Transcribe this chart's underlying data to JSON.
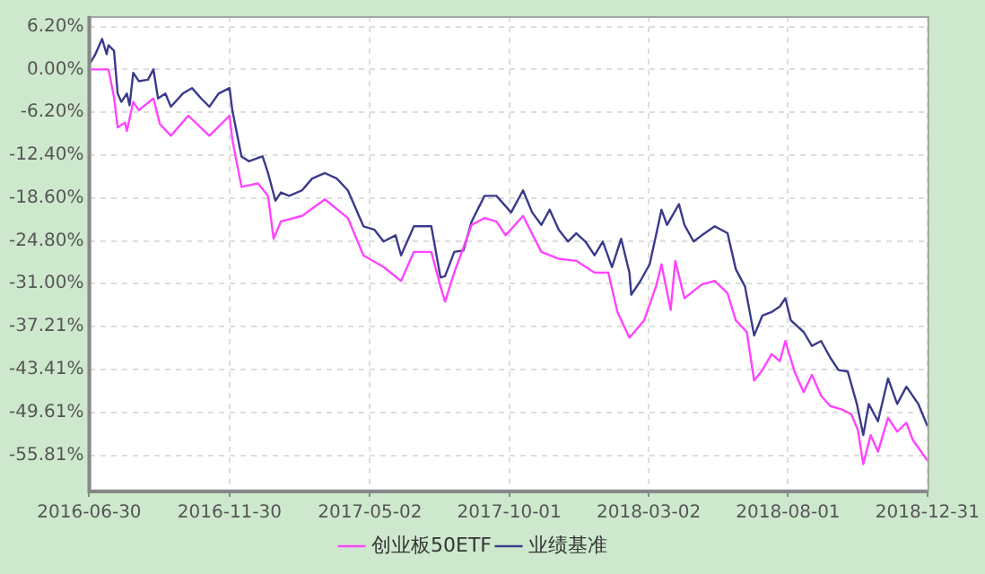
{
  "chart_data": {
    "type": "line",
    "xlim": [
      "2016-06-30",
      "2018-12-31"
    ],
    "xticks": [
      "2016-06-30",
      "2016-11-30",
      "2017-05-02",
      "2017-10-01",
      "2018-03-02",
      "2018-08-01",
      "2018-12-31"
    ],
    "ylim": [
      -60.8,
      7.7
    ],
    "yticks": [
      {
        "value": 6.2,
        "label": "6.20%"
      },
      {
        "value": 0,
        "label": "0.00%"
      },
      {
        "value": -6.2,
        "label": "-6.20%"
      },
      {
        "value": -12.4,
        "label": "-12.40%"
      },
      {
        "value": -18.6,
        "label": "-18.60%"
      },
      {
        "value": -24.8,
        "label": "-24.80%"
      },
      {
        "value": -31,
        "label": "-31.00%"
      },
      {
        "value": -37.21,
        "label": "-37.21%"
      },
      {
        "value": -43.41,
        "label": "-43.41%"
      },
      {
        "value": -49.61,
        "label": "-49.61%"
      },
      {
        "value": -55.81,
        "label": "-55.81%"
      }
    ],
    "grid": true,
    "legend": "bottom",
    "marker": "none",
    "line_style": "solid",
    "series": [
      {
        "name": "创业板50ETF",
        "color": "#ff44ff",
        "x": [
          "2016-06-30",
          "2016-07-21",
          "2016-07-27",
          "2016-07-31",
          "2016-08-08",
          "2016-08-10",
          "2016-08-17",
          "2016-08-23",
          "2016-09-08",
          "2016-09-15",
          "2016-09-27",
          "2016-10-16",
          "2016-11-08",
          "2016-11-30",
          "2016-12-03",
          "2016-12-13",
          "2016-12-31",
          "2017-01-11",
          "2017-01-17",
          "2017-01-25",
          "2017-02-17",
          "2017-03-14",
          "2017-04-08",
          "2017-04-25",
          "2017-05-17",
          "2017-06-05",
          "2017-06-19",
          "2017-07-08",
          "2017-07-18",
          "2017-07-23",
          "2017-08-02",
          "2017-08-21",
          "2017-09-04",
          "2017-09-17",
          "2017-09-27",
          "2017-10-16",
          "2017-11-05",
          "2017-11-24",
          "2017-12-13",
          "2018-01-02",
          "2018-01-17",
          "2018-01-27",
          "2018-02-09",
          "2018-02-25",
          "2018-03-10",
          "2018-03-16",
          "2018-03-26",
          "2018-03-31",
          "2018-04-10",
          "2018-04-29",
          "2018-05-13",
          "2018-05-27",
          "2018-06-05",
          "2018-06-17",
          "2018-06-25",
          "2018-07-04",
          "2018-07-14",
          "2018-07-23",
          "2018-07-29",
          "2018-08-08",
          "2018-08-18",
          "2018-08-27",
          "2018-09-06",
          "2018-09-16",
          "2018-09-29",
          "2018-10-09",
          "2018-10-16",
          "2018-10-22",
          "2018-10-30",
          "2018-11-07",
          "2018-11-18",
          "2018-11-28",
          "2018-12-08",
          "2018-12-15",
          "2018-12-31"
        ],
        "values": [
          0,
          0,
          -4,
          -8.4,
          -7.7,
          -8.9,
          -4.7,
          -5.9,
          -4.2,
          -7.9,
          -9.6,
          -6.7,
          -9.6,
          -6.7,
          -10.1,
          -17,
          -16.5,
          -18.3,
          -24.5,
          -22,
          -21.2,
          -18.8,
          -21.5,
          -26.9,
          -28.6,
          -30.6,
          -26.4,
          -26.4,
          -31.4,
          -33.6,
          -29.4,
          -22.5,
          -21.5,
          -22,
          -24,
          -21.2,
          -26.4,
          -27.4,
          -27.7,
          -29.4,
          -29.4,
          -35.1,
          -38.8,
          -36.3,
          -31.4,
          -28.2,
          -34.8,
          -27.7,
          -33.1,
          -31.1,
          -30.6,
          -32.4,
          -36.3,
          -38,
          -45,
          -43.5,
          -41.2,
          -42.2,
          -39.3,
          -43.7,
          -46.7,
          -44.2,
          -47.2,
          -48.7,
          -49.2,
          -49.9,
          -52.1,
          -57.1,
          -52.9,
          -55.3,
          -50.4,
          -52.4,
          -51.1,
          -53.6,
          -56.6
        ]
      },
      {
        "name": "业绩基准",
        "color": "#3a3a8c",
        "x": [
          "2016-06-30",
          "2016-07-06",
          "2016-07-14",
          "2016-07-19",
          "2016-07-21",
          "2016-07-27",
          "2016-07-31",
          "2016-08-04",
          "2016-08-10",
          "2016-08-13",
          "2016-08-17",
          "2016-08-23",
          "2016-09-02",
          "2016-09-08",
          "2016-09-13",
          "2016-09-21",
          "2016-09-27",
          "2016-10-10",
          "2016-10-20",
          "2016-10-30",
          "2016-11-08",
          "2016-11-18",
          "2016-11-30",
          "2016-12-03",
          "2016-12-13",
          "2016-12-21",
          "2016-12-31",
          "2017-01-05",
          "2017-01-11",
          "2017-01-19",
          "2017-01-25",
          "2017-02-03",
          "2017-02-17",
          "2017-02-28",
          "2017-03-14",
          "2017-03-27",
          "2017-04-08",
          "2017-04-25",
          "2017-05-07",
          "2017-05-17",
          "2017-05-30",
          "2017-06-05",
          "2017-06-19",
          "2017-07-08",
          "2017-07-18",
          "2017-07-23",
          "2017-08-02",
          "2017-08-12",
          "2017-08-21",
          "2017-09-04",
          "2017-09-17",
          "2017-10-03",
          "2017-10-16",
          "2017-10-26",
          "2017-11-05",
          "2017-11-14",
          "2017-11-24",
          "2017-12-04",
          "2017-12-13",
          "2017-12-23",
          "2018-01-02",
          "2018-01-11",
          "2018-01-21",
          "2018-01-31",
          "2018-02-09",
          "2018-02-11",
          "2018-02-21",
          "2018-03-03",
          "2018-03-10",
          "2018-03-16",
          "2018-03-22",
          "2018-04-04",
          "2018-04-10",
          "2018-04-20",
          "2018-04-29",
          "2018-05-13",
          "2018-05-27",
          "2018-06-05",
          "2018-06-15",
          "2018-06-25",
          "2018-07-04",
          "2018-07-14",
          "2018-07-23",
          "2018-07-29",
          "2018-08-04",
          "2018-08-18",
          "2018-08-27",
          "2018-09-06",
          "2018-09-16",
          "2018-09-25",
          "2018-10-05",
          "2018-10-15",
          "2018-10-22",
          "2018-10-28",
          "2018-11-07",
          "2018-11-18",
          "2018-11-28",
          "2018-12-08",
          "2018-12-21",
          "2018-12-31"
        ],
        "values": [
          0.7,
          2,
          4.4,
          2.2,
          3.5,
          2.7,
          -3.5,
          -4.7,
          -3.5,
          -5.2,
          -0.5,
          -1.7,
          -1.5,
          0,
          -4.2,
          -3.5,
          -5.4,
          -3.5,
          -2.7,
          -4.2,
          -5.4,
          -3.5,
          -2.7,
          -5.9,
          -12.6,
          -13.3,
          -12.8,
          -12.6,
          -15,
          -19,
          -17.8,
          -18.3,
          -17.5,
          -15.8,
          -15,
          -15.8,
          -17.5,
          -22.7,
          -23.2,
          -24.9,
          -24,
          -26.9,
          -22.7,
          -22.7,
          -30.1,
          -29.9,
          -26.4,
          -26.2,
          -22,
          -18.3,
          -18.3,
          -20.7,
          -17.5,
          -20.7,
          -22.5,
          -20.3,
          -23.2,
          -24.9,
          -23.7,
          -24.9,
          -26.9,
          -24.9,
          -28.6,
          -24.5,
          -29.4,
          -32.6,
          -30.6,
          -28.2,
          -24,
          -20.3,
          -22.5,
          -19.5,
          -22.5,
          -24.9,
          -24,
          -22.7,
          -23.7,
          -28.9,
          -31.4,
          -38.5,
          -35.6,
          -35.1,
          -34.3,
          -33.1,
          -36.3,
          -38,
          -40,
          -39.3,
          -41.7,
          -43.5,
          -43.7,
          -48.4,
          -52.9,
          -48.4,
          -50.9,
          -44.7,
          -48.4,
          -45.9,
          -48.4,
          -51.6
        ]
      }
    ]
  }
}
